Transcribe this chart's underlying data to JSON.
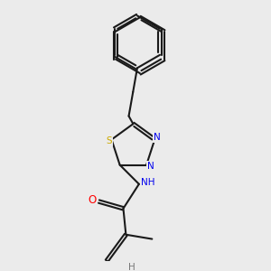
{
  "background_color": "#ebebeb",
  "bond_color": "#1a1a1a",
  "atom_colors": {
    "N": "#0000ee",
    "S": "#ccaa00",
    "O": "#ff0000",
    "H": "#777777",
    "C": "#1a1a1a"
  },
  "figsize": [
    3.0,
    3.0
  ],
  "dpi": 100,
  "lw": 1.5,
  "fs": 7.5
}
